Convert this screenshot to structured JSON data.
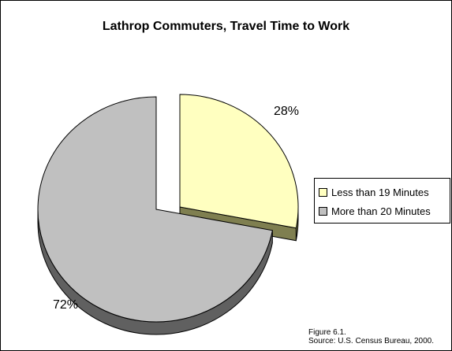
{
  "chart_data": {
    "type": "pie",
    "title": "Lathrop Commuters, Travel Time to Work",
    "slices": [
      {
        "label": "Less than 19 Minutes",
        "value": 28,
        "value_label": "28%",
        "color": "#ffffc0",
        "side_color": "#7f7f50"
      },
      {
        "label": "More than 20 Minutes",
        "value": 72,
        "value_label": "72%",
        "color": "#c0c0c0",
        "side_color": "#606060"
      }
    ],
    "legend_position": "right",
    "exploded_slice": "Less than 19 Minutes",
    "style": "3d"
  },
  "note": {
    "line1": "Figure 6.1.",
    "line2": "Source:  U.S. Census Bureau, 2000."
  }
}
